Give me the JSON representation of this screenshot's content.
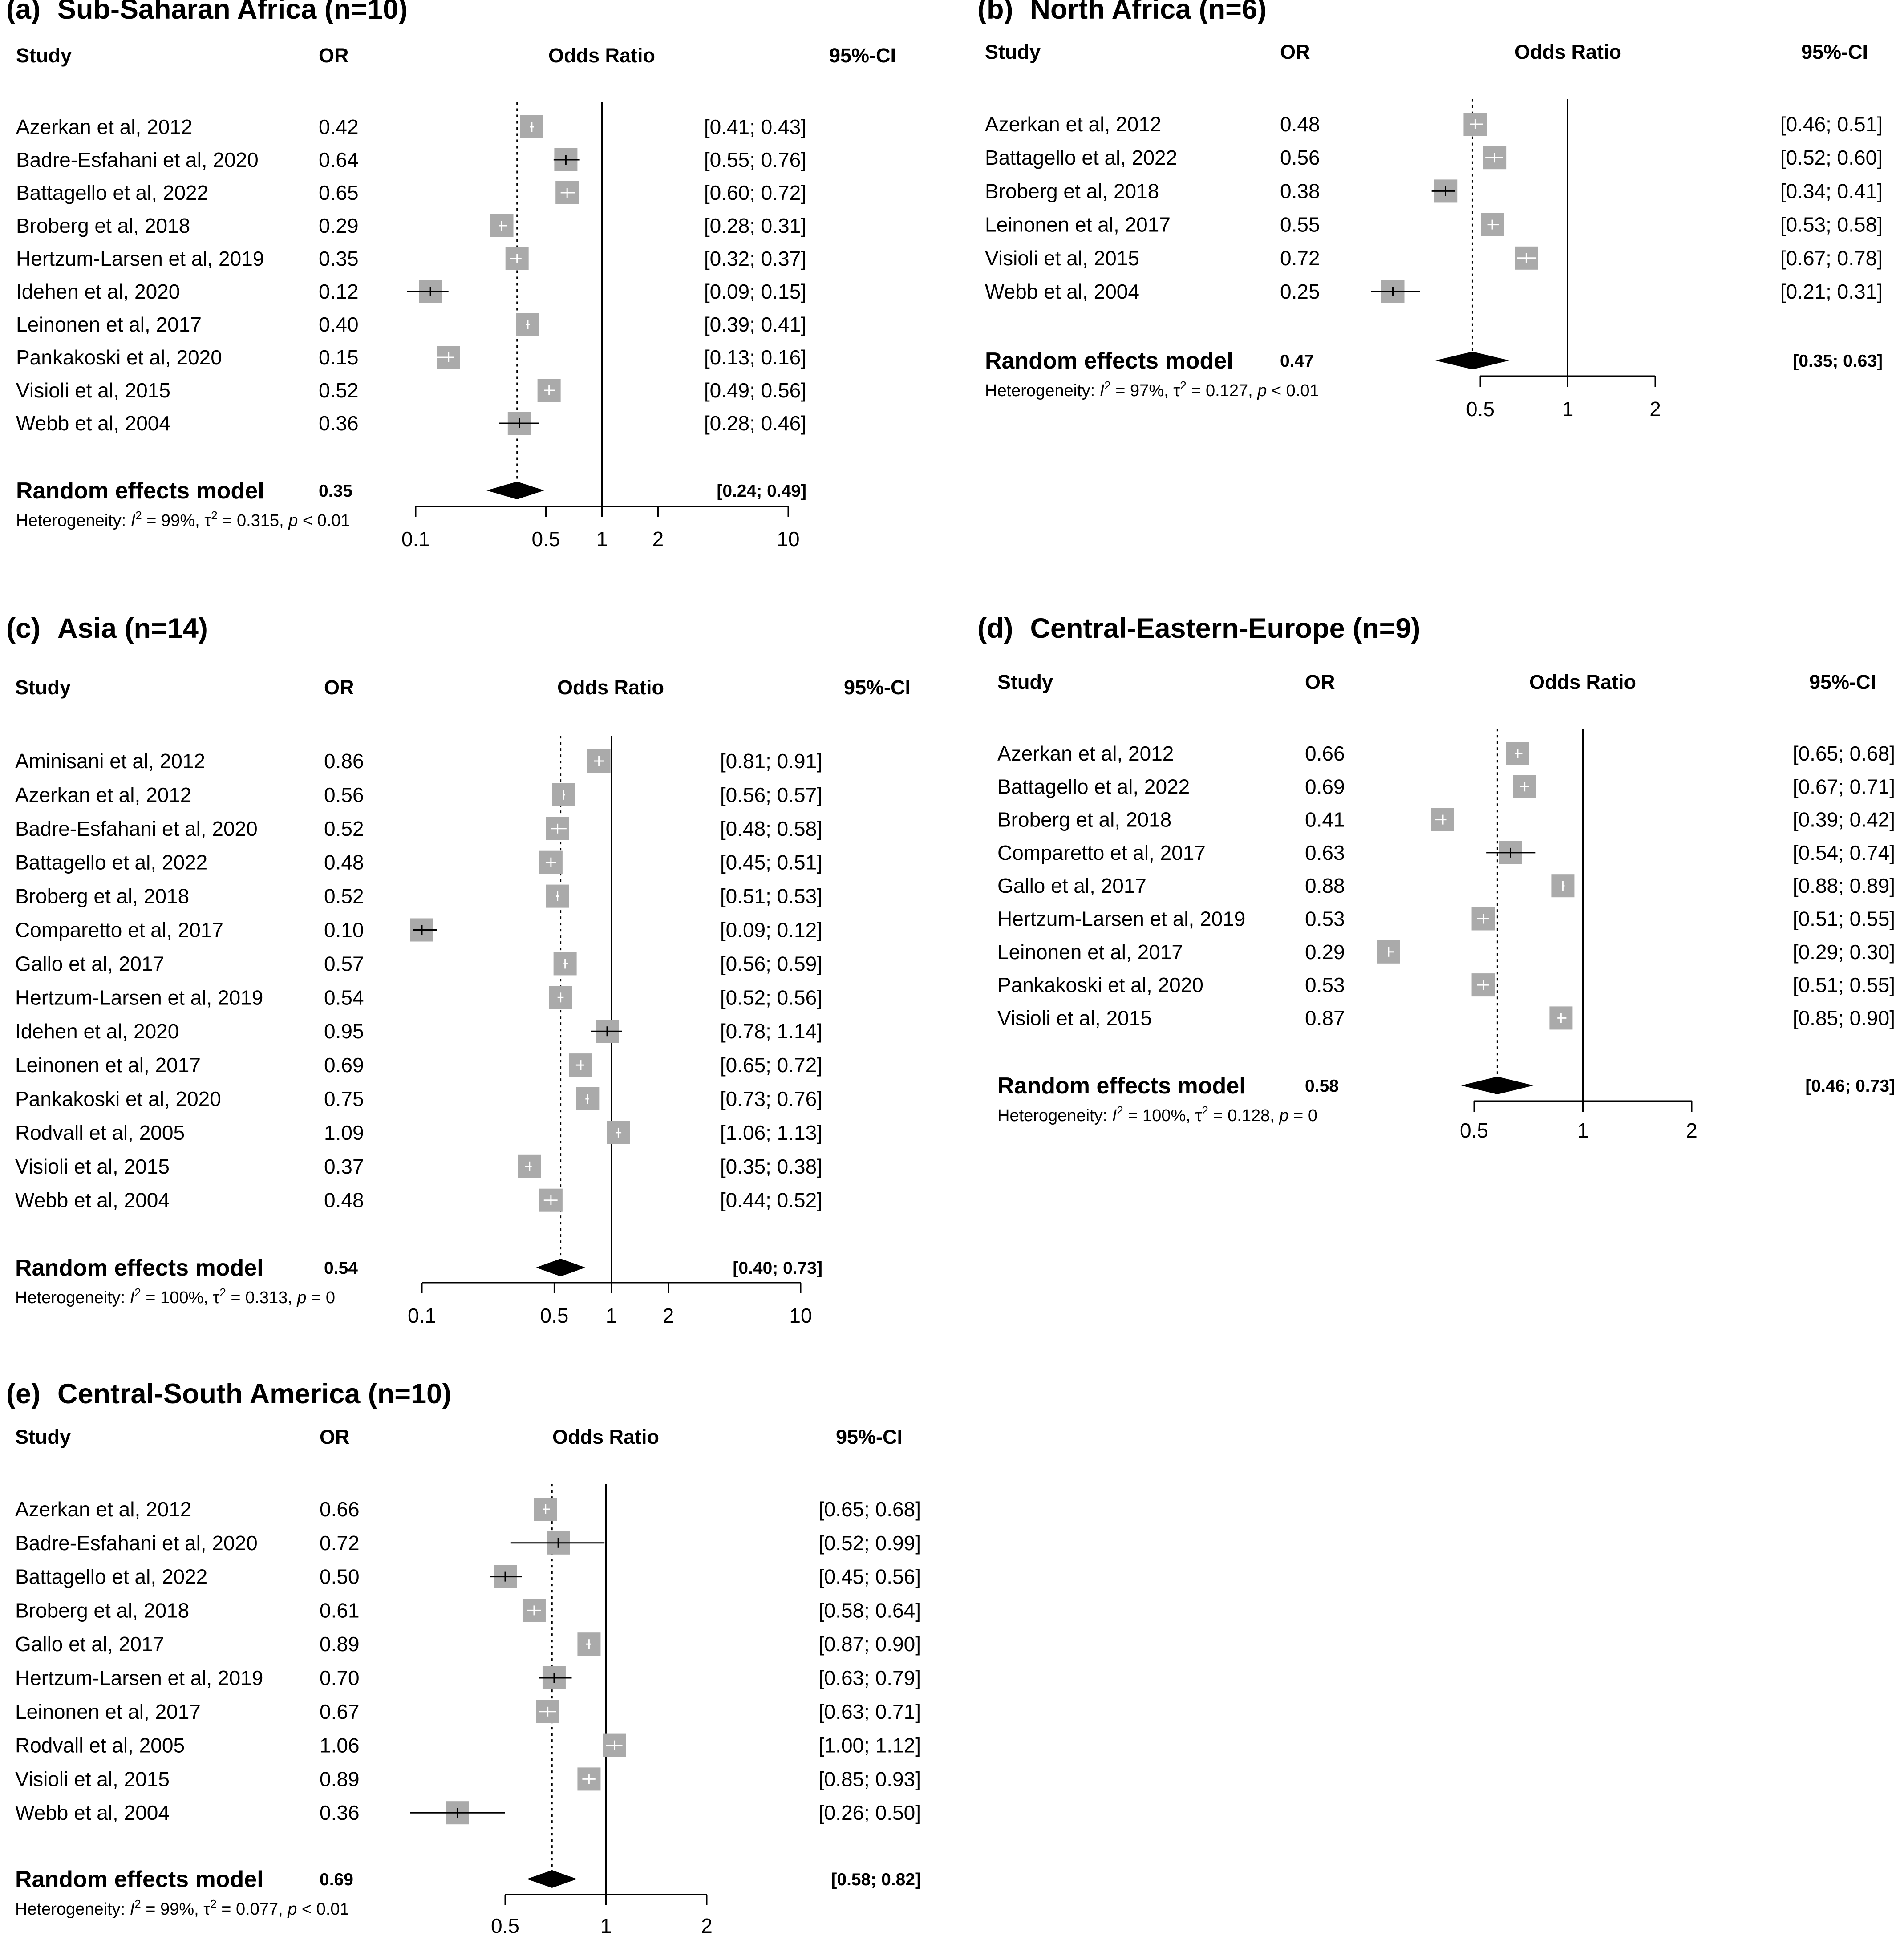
{
  "figure": {
    "header_labels": {
      "study": "Study",
      "or": "OR",
      "plot": "Odds Ratio",
      "ci": "95%-CI"
    },
    "random_label": "Random effects model",
    "het_prefix": "Heterogeneity: ",
    "colors": {
      "square": "#aaaaaa",
      "line": "#000000",
      "ci_inside_box": "#ffffff",
      "diamond": "#000000"
    }
  },
  "chart_data": [
    {
      "type": "forest",
      "panel": "(a)",
      "title": "Sub-Saharan Africa (n=10)",
      "scale": "log",
      "xlim": [
        0.1,
        10
      ],
      "ticks": [
        0.1,
        0.5,
        1,
        2,
        10
      ],
      "tick_labels": [
        "0.1",
        "0.5",
        "1",
        "2",
        "10"
      ],
      "studies": [
        {
          "study": "Azerkan et al, 2012",
          "or": 0.42,
          "lo": 0.41,
          "hi": 0.43,
          "or_text": "0.42",
          "ci_text": "[0.41; 0.43]"
        },
        {
          "study": "Badre-Esfahani et al, 2020",
          "or": 0.64,
          "lo": 0.55,
          "hi": 0.76,
          "or_text": "0.64",
          "ci_text": "[0.55; 0.76]"
        },
        {
          "study": "Battagello et al, 2022",
          "or": 0.65,
          "lo": 0.6,
          "hi": 0.72,
          "or_text": "0.65",
          "ci_text": "[0.60; 0.72]"
        },
        {
          "study": "Broberg et al, 2018",
          "or": 0.29,
          "lo": 0.28,
          "hi": 0.31,
          "or_text": "0.29",
          "ci_text": "[0.28; 0.31]"
        },
        {
          "study": "Hertzum-Larsen et al, 2019",
          "or": 0.35,
          "lo": 0.32,
          "hi": 0.37,
          "or_text": "0.35",
          "ci_text": "[0.32; 0.37]"
        },
        {
          "study": "Idehen et al, 2020",
          "or": 0.12,
          "lo": 0.09,
          "hi": 0.15,
          "or_text": "0.12",
          "ci_text": "[0.09; 0.15]"
        },
        {
          "study": "Leinonen et al, 2017",
          "or": 0.4,
          "lo": 0.39,
          "hi": 0.41,
          "or_text": "0.40",
          "ci_text": "[0.39; 0.41]"
        },
        {
          "study": "Pankakoski et al, 2020",
          "or": 0.15,
          "lo": 0.13,
          "hi": 0.16,
          "or_text": "0.15",
          "ci_text": "[0.13; 0.16]"
        },
        {
          "study": "Visioli et al, 2015",
          "or": 0.52,
          "lo": 0.49,
          "hi": 0.56,
          "or_text": "0.52",
          "ci_text": "[0.49; 0.56]"
        },
        {
          "study": "Webb et al, 2004",
          "or": 0.36,
          "lo": 0.28,
          "hi": 0.46,
          "or_text": "0.36",
          "ci_text": "[0.28; 0.46]"
        }
      ],
      "pooled": {
        "or": 0.35,
        "lo": 0.24,
        "hi": 0.49,
        "or_text": "0.35",
        "ci_text": "[0.24; 0.49]"
      },
      "heterogeneity": {
        "i2": "99%",
        "tau2": "0.315",
        "p": "< 0.01"
      }
    },
    {
      "type": "forest",
      "panel": "(b)",
      "title": "North Africa (n=6)",
      "scale": "log",
      "xlim": [
        0.5,
        2
      ],
      "ticks": [
        0.5,
        1,
        2
      ],
      "tick_labels": [
        "0.5",
        "1",
        "2"
      ],
      "studies": [
        {
          "study": "Azerkan et al, 2012",
          "or": 0.48,
          "lo": 0.46,
          "hi": 0.51,
          "or_text": "0.48",
          "ci_text": "[0.46; 0.51]"
        },
        {
          "study": "Battagello et al, 2022",
          "or": 0.56,
          "lo": 0.52,
          "hi": 0.6,
          "or_text": "0.56",
          "ci_text": "[0.52; 0.60]"
        },
        {
          "study": "Broberg et al, 2018",
          "or": 0.38,
          "lo": 0.34,
          "hi": 0.41,
          "or_text": "0.38",
          "ci_text": "[0.34; 0.41]"
        },
        {
          "study": "Leinonen et al, 2017",
          "or": 0.55,
          "lo": 0.53,
          "hi": 0.58,
          "or_text": "0.55",
          "ci_text": "[0.53; 0.58]"
        },
        {
          "study": "Visioli et al, 2015",
          "or": 0.72,
          "lo": 0.67,
          "hi": 0.78,
          "or_text": "0.72",
          "ci_text": "[0.67; 0.78]"
        },
        {
          "study": "Webb et al, 2004",
          "or": 0.25,
          "lo": 0.21,
          "hi": 0.31,
          "or_text": "0.25",
          "ci_text": "[0.21; 0.31]"
        }
      ],
      "pooled": {
        "or": 0.47,
        "lo": 0.35,
        "hi": 0.63,
        "or_text": "0.47",
        "ci_text": "[0.35; 0.63]"
      },
      "heterogeneity": {
        "i2": "97%",
        "tau2": "0.127",
        "p": "< 0.01"
      }
    },
    {
      "type": "forest",
      "panel": "(c)",
      "title": "Asia (n=14)",
      "scale": "log",
      "xlim": [
        0.1,
        10
      ],
      "ticks": [
        0.1,
        0.5,
        1,
        2,
        10
      ],
      "tick_labels": [
        "0.1",
        "0.5",
        "1",
        "2",
        "10"
      ],
      "studies": [
        {
          "study": "Aminisani et al, 2012",
          "or": 0.86,
          "lo": 0.81,
          "hi": 0.91,
          "or_text": "0.86",
          "ci_text": "[0.81; 0.91]"
        },
        {
          "study": "Azerkan et al, 2012",
          "or": 0.56,
          "lo": 0.56,
          "hi": 0.57,
          "or_text": "0.56",
          "ci_text": "[0.56; 0.57]"
        },
        {
          "study": "Badre-Esfahani et al, 2020",
          "or": 0.52,
          "lo": 0.48,
          "hi": 0.58,
          "or_text": "0.52",
          "ci_text": "[0.48; 0.58]"
        },
        {
          "study": "Battagello et al, 2022",
          "or": 0.48,
          "lo": 0.45,
          "hi": 0.51,
          "or_text": "0.48",
          "ci_text": "[0.45; 0.51]"
        },
        {
          "study": "Broberg et al, 2018",
          "or": 0.52,
          "lo": 0.51,
          "hi": 0.53,
          "or_text": "0.52",
          "ci_text": "[0.51; 0.53]"
        },
        {
          "study": "Comparetto et al, 2017",
          "or": 0.1,
          "lo": 0.09,
          "hi": 0.12,
          "or_text": "0.10",
          "ci_text": "[0.09; 0.12]"
        },
        {
          "study": "Gallo et al, 2017",
          "or": 0.57,
          "lo": 0.56,
          "hi": 0.59,
          "or_text": "0.57",
          "ci_text": "[0.56; 0.59]"
        },
        {
          "study": "Hertzum-Larsen et al, 2019",
          "or": 0.54,
          "lo": 0.52,
          "hi": 0.56,
          "or_text": "0.54",
          "ci_text": "[0.52; 0.56]"
        },
        {
          "study": "Idehen et al, 2020",
          "or": 0.95,
          "lo": 0.78,
          "hi": 1.14,
          "or_text": "0.95",
          "ci_text": "[0.78; 1.14]"
        },
        {
          "study": "Leinonen et al, 2017",
          "or": 0.69,
          "lo": 0.65,
          "hi": 0.72,
          "or_text": "0.69",
          "ci_text": "[0.65; 0.72]"
        },
        {
          "study": "Pankakoski et al, 2020",
          "or": 0.75,
          "lo": 0.73,
          "hi": 0.76,
          "or_text": "0.75",
          "ci_text": "[0.73; 0.76]"
        },
        {
          "study": "Rodvall et al, 2005",
          "or": 1.09,
          "lo": 1.06,
          "hi": 1.13,
          "or_text": "1.09",
          "ci_text": "[1.06; 1.13]"
        },
        {
          "study": "Visioli et al, 2015",
          "or": 0.37,
          "lo": 0.35,
          "hi": 0.38,
          "or_text": "0.37",
          "ci_text": "[0.35; 0.38]"
        },
        {
          "study": "Webb et al, 2004",
          "or": 0.48,
          "lo": 0.44,
          "hi": 0.52,
          "or_text": "0.48",
          "ci_text": "[0.44; 0.52]"
        }
      ],
      "pooled": {
        "or": 0.54,
        "lo": 0.4,
        "hi": 0.73,
        "or_text": "0.54",
        "ci_text": "[0.40; 0.73]"
      },
      "heterogeneity": {
        "i2": "100%",
        "tau2": "0.313",
        "p": "= 0"
      }
    },
    {
      "type": "forest",
      "panel": "(d)",
      "title": "Central-Eastern-Europe (n=9)",
      "scale": "log",
      "xlim": [
        0.5,
        2
      ],
      "ticks": [
        0.5,
        1,
        2
      ],
      "tick_labels": [
        "0.5",
        "1",
        "2"
      ],
      "studies": [
        {
          "study": "Azerkan et al, 2012",
          "or": 0.66,
          "lo": 0.65,
          "hi": 0.68,
          "or_text": "0.66",
          "ci_text": "[0.65; 0.68]"
        },
        {
          "study": "Battagello et al, 2022",
          "or": 0.69,
          "lo": 0.67,
          "hi": 0.71,
          "or_text": "0.69",
          "ci_text": "[0.67; 0.71]"
        },
        {
          "study": "Broberg et al, 2018",
          "or": 0.41,
          "lo": 0.39,
          "hi": 0.42,
          "or_text": "0.41",
          "ci_text": "[0.39; 0.42]"
        },
        {
          "study": "Comparetto et al, 2017",
          "or": 0.63,
          "lo": 0.54,
          "hi": 0.74,
          "or_text": "0.63",
          "ci_text": "[0.54; 0.74]"
        },
        {
          "study": "Gallo et al, 2017",
          "or": 0.88,
          "lo": 0.88,
          "hi": 0.89,
          "or_text": "0.88",
          "ci_text": "[0.88; 0.89]"
        },
        {
          "study": "Hertzum-Larsen et al, 2019",
          "or": 0.53,
          "lo": 0.51,
          "hi": 0.55,
          "or_text": "0.53",
          "ci_text": "[0.51; 0.55]"
        },
        {
          "study": "Leinonen et al, 2017",
          "or": 0.29,
          "lo": 0.29,
          "hi": 0.3,
          "or_text": "0.29",
          "ci_text": "[0.29; 0.30]"
        },
        {
          "study": "Pankakoski et al, 2020",
          "or": 0.53,
          "lo": 0.51,
          "hi": 0.55,
          "or_text": "0.53",
          "ci_text": "[0.51; 0.55]"
        },
        {
          "study": "Visioli et al, 2015",
          "or": 0.87,
          "lo": 0.85,
          "hi": 0.9,
          "or_text": "0.87",
          "ci_text": "[0.85; 0.90]"
        }
      ],
      "pooled": {
        "or": 0.58,
        "lo": 0.46,
        "hi": 0.73,
        "or_text": "0.58",
        "ci_text": "[0.46; 0.73]"
      },
      "heterogeneity": {
        "i2": "100%",
        "tau2": "0.128",
        "p": "= 0"
      }
    },
    {
      "type": "forest",
      "panel": "(e)",
      "title": "Central-South America (n=10)",
      "scale": "log",
      "xlim": [
        0.5,
        2
      ],
      "ticks": [
        0.5,
        1,
        2
      ],
      "tick_labels": [
        "0.5",
        "1",
        "2"
      ],
      "studies": [
        {
          "study": "Azerkan et al, 2012",
          "or": 0.66,
          "lo": 0.65,
          "hi": 0.68,
          "or_text": "0.66",
          "ci_text": "[0.65; 0.68]"
        },
        {
          "study": "Badre-Esfahani et al, 2020",
          "or": 0.72,
          "lo": 0.52,
          "hi": 0.99,
          "or_text": "0.72",
          "ci_text": "[0.52; 0.99]"
        },
        {
          "study": "Battagello et al, 2022",
          "or": 0.5,
          "lo": 0.45,
          "hi": 0.56,
          "or_text": "0.50",
          "ci_text": "[0.45; 0.56]"
        },
        {
          "study": "Broberg et al, 2018",
          "or": 0.61,
          "lo": 0.58,
          "hi": 0.64,
          "or_text": "0.61",
          "ci_text": "[0.58; 0.64]"
        },
        {
          "study": "Gallo et al, 2017",
          "or": 0.89,
          "lo": 0.87,
          "hi": 0.9,
          "or_text": "0.89",
          "ci_text": "[0.87; 0.90]"
        },
        {
          "study": "Hertzum-Larsen et al, 2019",
          "or": 0.7,
          "lo": 0.63,
          "hi": 0.79,
          "or_text": "0.70",
          "ci_text": "[0.63; 0.79]"
        },
        {
          "study": "Leinonen et al, 2017",
          "or": 0.67,
          "lo": 0.63,
          "hi": 0.71,
          "or_text": "0.67",
          "ci_text": "[0.63; 0.71]"
        },
        {
          "study": "Rodvall et al, 2005",
          "or": 1.06,
          "lo": 1.0,
          "hi": 1.12,
          "or_text": "1.06",
          "ci_text": "[1.00; 1.12]"
        },
        {
          "study": "Visioli et al, 2015",
          "or": 0.89,
          "lo": 0.85,
          "hi": 0.93,
          "or_text": "0.89",
          "ci_text": "[0.85; 0.93]"
        },
        {
          "study": "Webb et al, 2004",
          "or": 0.36,
          "lo": 0.26,
          "hi": 0.5,
          "or_text": "0.36",
          "ci_text": "[0.26; 0.50]"
        }
      ],
      "pooled": {
        "or": 0.69,
        "lo": 0.58,
        "hi": 0.82,
        "or_text": "0.69",
        "ci_text": "[0.58; 0.82]"
      },
      "heterogeneity": {
        "i2": "99%",
        "tau2": "0.077",
        "p": "< 0.01"
      }
    }
  ]
}
